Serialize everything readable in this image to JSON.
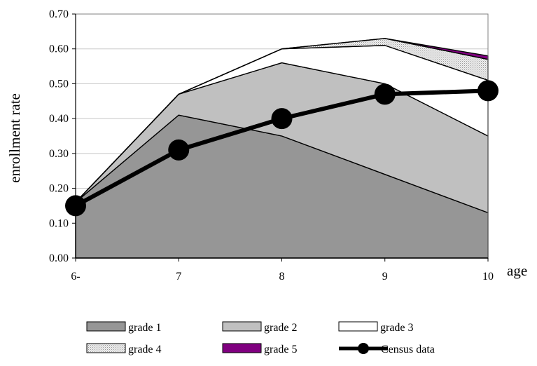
{
  "chart_data": {
    "type": "area",
    "title": "",
    "xlabel": "age",
    "ylabel": "enrollment rate",
    "categories": [
      "6-",
      "7",
      "8",
      "9",
      "10"
    ],
    "ylim": [
      0,
      0.7
    ],
    "yticks": [
      "0.00",
      "0.10",
      "0.20",
      "0.30",
      "0.40",
      "0.50",
      "0.60",
      "0.70"
    ],
    "grid": true,
    "stacked": true,
    "legend_position": "bottom",
    "series": [
      {
        "name": "grade 1",
        "values": [
          0.16,
          0.41,
          0.35,
          0.24,
          0.13
        ],
        "color": "#969696"
      },
      {
        "name": "grade 2",
        "values": [
          0.0,
          0.06,
          0.21,
          0.26,
          0.22
        ],
        "color": "#c0c0c0"
      },
      {
        "name": "grade 3",
        "values": [
          0.0,
          0.0,
          0.04,
          0.11,
          0.16
        ],
        "color": "#ffffff"
      },
      {
        "name": "grade 4",
        "values": [
          0.0,
          0.0,
          0.0,
          0.02,
          0.06
        ],
        "color": "#e0e0e0"
      },
      {
        "name": "grade 5",
        "values": [
          0.0,
          0.0,
          0.0,
          0.0,
          0.01
        ],
        "color": "#800080"
      }
    ],
    "line_series": [
      {
        "name": "Census data",
        "values": [
          0.15,
          0.31,
          0.4,
          0.47,
          0.48
        ],
        "color": "#000000"
      }
    ]
  }
}
